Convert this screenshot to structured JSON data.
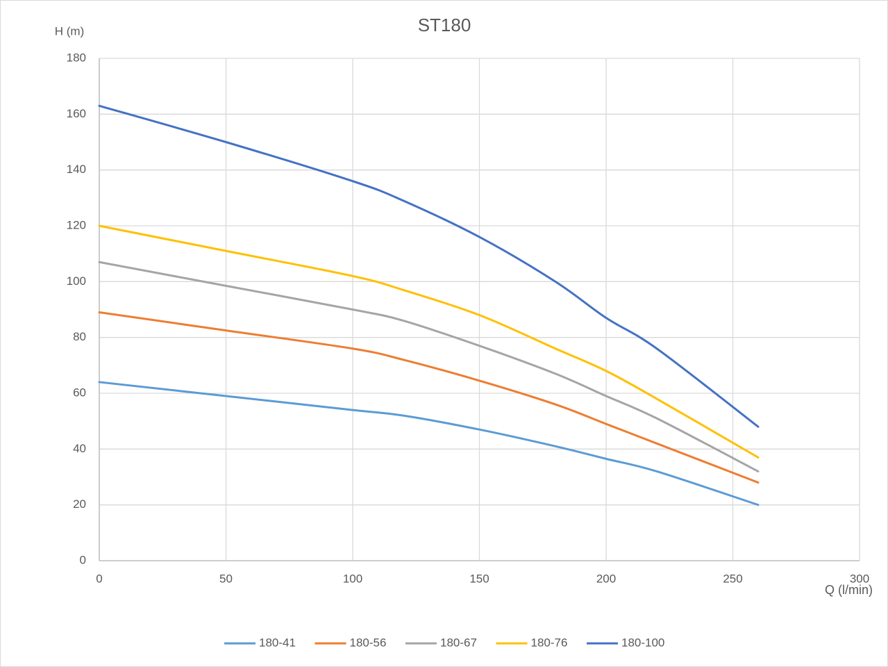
{
  "chart_data": {
    "type": "line",
    "title": "ST180",
    "x_label": "Q (l/min)",
    "y_label": "H (m)",
    "x": [
      0,
      50,
      100,
      120,
      150,
      180,
      200,
      220,
      260
    ],
    "series": [
      {
        "name": "180-41",
        "color": "#5b9bd5",
        "values": [
          64,
          59,
          54,
          52,
          47,
          41,
          36.5,
          32,
          20
        ]
      },
      {
        "name": "180-56",
        "color": "#ed7d31",
        "values": [
          89,
          82.5,
          76,
          72,
          64.5,
          56,
          49,
          42,
          28
        ]
      },
      {
        "name": "180-67",
        "color": "#a5a5a5",
        "values": [
          107,
          98.5,
          90,
          86,
          77,
          67,
          59,
          51,
          32
        ]
      },
      {
        "name": "180-76",
        "color": "#ffc000",
        "values": [
          120,
          111,
          102,
          97,
          88,
          76,
          68,
          58,
          37
        ]
      },
      {
        "name": "180-100",
        "color": "#4472c4",
        "values": [
          163,
          150,
          136,
          129,
          116,
          100,
          87,
          76,
          48
        ]
      }
    ],
    "xlim": [
      0,
      300
    ],
    "xticks": [
      0,
      50,
      100,
      150,
      200,
      250,
      300
    ],
    "ylim": [
      0,
      180
    ],
    "yticks": [
      0,
      20,
      40,
      60,
      80,
      100,
      120,
      140,
      160,
      180
    ],
    "grid": true,
    "legend": "bottom"
  }
}
